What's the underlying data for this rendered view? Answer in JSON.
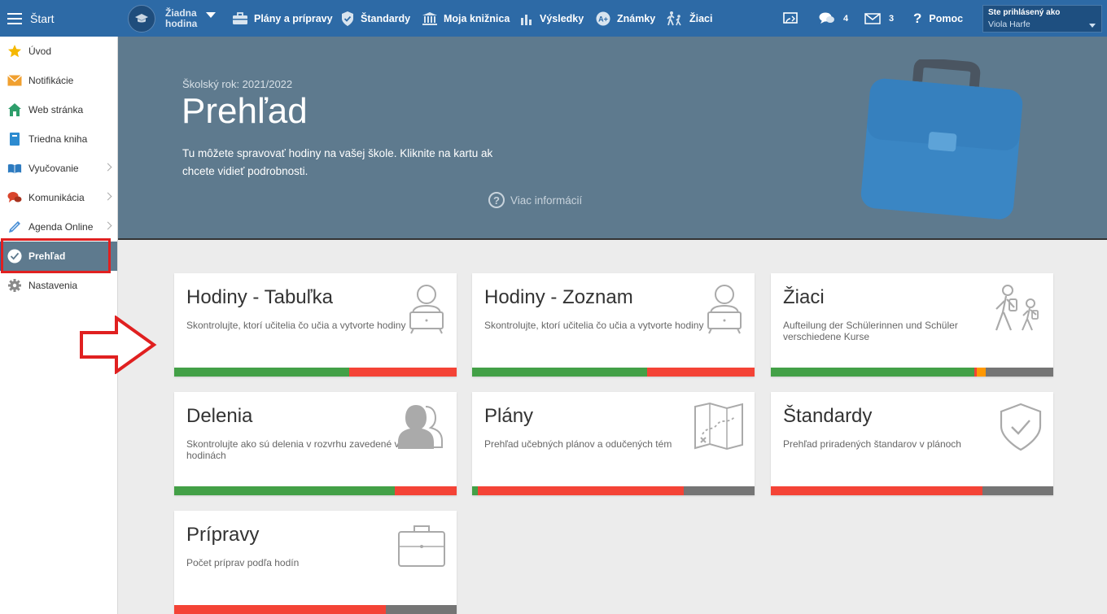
{
  "topbar": {
    "start_label": "Štart",
    "lesson_label": "Žiadna hodina",
    "nav": [
      {
        "label": "Plány a prípravy",
        "icon": "briefcase-icon"
      },
      {
        "label": "Štandardy",
        "icon": "shield-icon"
      },
      {
        "label": "Moja knižnica",
        "icon": "library-icon"
      },
      {
        "label": "Výsledky",
        "icon": "bar-chart-icon"
      },
      {
        "label": "Známky",
        "icon": "grades-icon"
      },
      {
        "label": "Žiaci",
        "icon": "students-icon"
      }
    ],
    "cast_icon": "cast-icon",
    "messages_count": "4",
    "mail_count": "3",
    "help_label": "Pomoc",
    "user_label": "Ste prihlásený ako",
    "user_name": "Viola Harfe"
  },
  "sidebar": {
    "items": [
      {
        "label": "Úvod",
        "icon": "star-icon"
      },
      {
        "label": "Notifikácie",
        "icon": "envelope-icon"
      },
      {
        "label": "Web stránka",
        "icon": "home-icon"
      },
      {
        "label": "Triedna kniha",
        "icon": "book-icon"
      },
      {
        "label": "Vyučovanie",
        "icon": "open-book-icon",
        "submenu": true
      },
      {
        "label": "Komunikácia",
        "icon": "chat-icon",
        "submenu": true
      },
      {
        "label": "Agenda Online",
        "icon": "pencil-icon",
        "submenu": true
      },
      {
        "label": "Prehľad",
        "icon": "check-circle-icon",
        "active": true
      },
      {
        "label": "Nastavenia",
        "icon": "gear-icon"
      }
    ]
  },
  "hero": {
    "school_year": "Školský rok: 2021/2022",
    "title": "Prehľad",
    "description": "Tu môžete spravovať hodiny na vašej škole. Kliknite na kartu ak chcete vidieť podrobnosti.",
    "more_info": "Viac informácií"
  },
  "colors": {
    "green": "#43a047",
    "red": "#f44336",
    "gray": "#757575",
    "orange": "#ff9800"
  },
  "cards": [
    {
      "title": "Hodiny - Tabuľka",
      "description": "Skontrolujte, ktorí učitelia čo učia a vytvorte hodiny",
      "icon": "teacher-icon",
      "progress": [
        {
          "color": "green",
          "percent": 62
        },
        {
          "color": "red",
          "percent": 38
        }
      ]
    },
    {
      "title": "Hodiny - Zoznam",
      "description": "Skontrolujte, ktorí učitelia čo učia a vytvorte hodiny",
      "icon": "teacher-icon",
      "progress": [
        {
          "color": "green",
          "percent": 62
        },
        {
          "color": "red",
          "percent": 38
        }
      ]
    },
    {
      "title": "Žiaci",
      "description": "Aufteilung der Schülerinnen und Schüler verschiedene Kurse",
      "icon": "students-icon",
      "progress": [
        {
          "color": "green",
          "percent": 72
        },
        {
          "color": "red",
          "percent": 1
        },
        {
          "color": "orange",
          "percent": 3
        },
        {
          "color": "gray",
          "percent": 24
        }
      ]
    },
    {
      "title": "Delenia",
      "description": "Skontrolujte ako sú delenia v rozvrhu zavedené v hodinách",
      "icon": "group-icon",
      "progress": [
        {
          "color": "green",
          "percent": 78
        },
        {
          "color": "red",
          "percent": 22
        }
      ]
    },
    {
      "title": "Plány",
      "description": "Prehľad učebných plánov a odučených tém",
      "icon": "map-icon",
      "progress": [
        {
          "color": "green",
          "percent": 2
        },
        {
          "color": "red",
          "percent": 73
        },
        {
          "color": "gray",
          "percent": 25
        }
      ]
    },
    {
      "title": "Štandardy",
      "description": "Prehľad priradených štandarov v plánoch",
      "icon": "shield-check-icon",
      "progress": [
        {
          "color": "red",
          "percent": 75
        },
        {
          "color": "gray",
          "percent": 25
        }
      ]
    },
    {
      "title": "Prípravy",
      "description": "Počet príprav podľa hodín",
      "icon": "briefcase-icon",
      "progress": [
        {
          "color": "red",
          "percent": 75
        },
        {
          "color": "gray",
          "percent": 25
        }
      ]
    }
  ]
}
